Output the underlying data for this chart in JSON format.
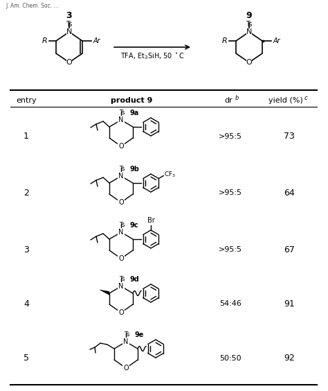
{
  "title_text": "TFA, Et₃SiH, 50 °C",
  "compound_3": "3",
  "compound_9": "9",
  "table_headers": [
    "entry",
    "product 9",
    "dr",
    "yield (%)"
  ],
  "entries": [
    {
      "entry": "1",
      "product": "9a",
      "dr": ">95:5",
      "yield": "73"
    },
    {
      "entry": "2",
      "product": "9b",
      "dr": ">95:5",
      "yield": "64"
    },
    {
      "entry": "3",
      "product": "9c",
      "dr": ">95:5",
      "yield": "67"
    },
    {
      "entry": "4",
      "product": "9d",
      "dr": "54:46",
      "yield": "91"
    },
    {
      "entry": "5",
      "product": "9e",
      "dr": "50:50",
      "yield": "92"
    }
  ],
  "bg_color": "#ffffff",
  "text_color": "#000000",
  "fig_width": 4.74,
  "fig_height": 5.64,
  "dpi": 100
}
